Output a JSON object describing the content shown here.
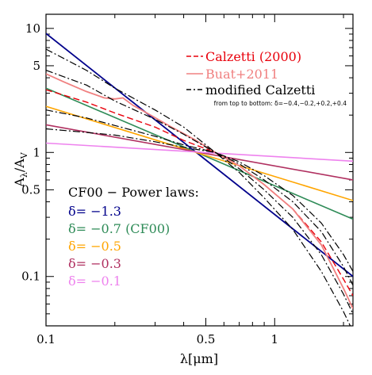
{
  "chart_data": {
    "type": "line",
    "x_scale": "log",
    "y_scale": "log",
    "xlim": [
      0.1,
      2.2
    ],
    "ylim": [
      0.04,
      13
    ],
    "xlabel": "λ[μm]",
    "ylabel": "Aλ/AV",
    "ylabel_main": "A",
    "ylabel_sub1": "λ",
    "ylabel_slash": "/A",
    "ylabel_sub2": "V",
    "x_ticks": [
      {
        "value": 0.1,
        "label": "0.1"
      },
      {
        "value": 0.5,
        "label": "0.5"
      },
      {
        "value": 1,
        "label": "1"
      }
    ],
    "y_ticks": [
      {
        "value": 0.1,
        "label": "0.1"
      },
      {
        "value": 0.5,
        "label": "0.5"
      },
      {
        "value": 1,
        "label": "1"
      },
      {
        "value": 5,
        "label": "5"
      },
      {
        "value": 10,
        "label": "10"
      }
    ],
    "legend_top": [
      {
        "label": "Calzetti (2000)",
        "color": "#e8000b",
        "style": "dashed"
      },
      {
        "label": "Buat+2011",
        "color": "#f08080",
        "style": "solid"
      },
      {
        "label": "modified Calzetti",
        "color": "#000000",
        "style": "dashdot"
      }
    ],
    "legend_note": "from top to bottom: δ=−0.4,−0.2,+0.2,+0.4",
    "legend_bottom_title": "CF00 − Power laws:",
    "power_law_labels": [
      {
        "label": "δ= −1.3",
        "color": "#00008b"
      },
      {
        "label": "δ= −0.7 (CF00)",
        "color": "#2e8b57"
      },
      {
        "label": "δ= −0.5",
        "color": "#ffa500"
      },
      {
        "label": "δ= −0.3",
        "color": "#b03060"
      },
      {
        "label": "δ= −0.1",
        "color": "#ee82ee"
      }
    ],
    "series": [
      {
        "name": "δ= −1.3",
        "color": "#00008b",
        "style": "solid",
        "width": 1.8,
        "x": [
          0.1,
          2.2
        ],
        "y": [
          9.1,
          0.1
        ]
      },
      {
        "name": "δ= −0.7 (CF00)",
        "color": "#2e8b57",
        "style": "solid",
        "width": 1.6,
        "x": [
          0.1,
          2.2
        ],
        "y": [
          3.3,
          0.29
        ]
      },
      {
        "name": "δ= −0.5",
        "color": "#ffa500",
        "style": "solid",
        "width": 1.6,
        "x": [
          0.1,
          2.2
        ],
        "y": [
          2.35,
          0.41
        ]
      },
      {
        "name": "δ= −0.3",
        "color": "#b03060",
        "style": "solid",
        "width": 1.6,
        "x": [
          0.1,
          2.2
        ],
        "y": [
          1.67,
          0.6
        ]
      },
      {
        "name": "δ= −0.1",
        "color": "#ee82ee",
        "style": "solid",
        "width": 1.6,
        "x": [
          0.1,
          2.2
        ],
        "y": [
          1.19,
          0.85
        ]
      },
      {
        "name": "Calzetti (2000)",
        "color": "#e8000b",
        "style": "dashed",
        "width": 1.4,
        "x": [
          0.1,
          0.15,
          0.2,
          0.3,
          0.4,
          0.55,
          0.7,
          0.9,
          1.2,
          1.6,
          2.0,
          2.2
        ],
        "y": [
          3.2,
          2.55,
          2.08,
          1.6,
          1.25,
          1.0,
          0.78,
          0.55,
          0.35,
          0.19,
          0.095,
          0.07
        ]
      },
      {
        "name": "Buat+2011",
        "color": "#f08080",
        "style": "solid",
        "width": 1.8,
        "x": [
          0.1,
          0.12,
          0.15,
          0.18,
          0.2,
          0.217,
          0.24,
          0.28,
          0.35,
          0.45,
          0.55,
          0.7,
          0.9,
          1.2,
          1.6,
          2.0,
          2.2
        ],
        "y": [
          4.3,
          3.7,
          3.1,
          2.75,
          2.7,
          2.75,
          2.4,
          2.05,
          1.62,
          1.26,
          1.0,
          0.78,
          0.55,
          0.35,
          0.18,
          0.08,
          0.055
        ]
      },
      {
        "name": "modified Calzetti δ=−0.4",
        "color": "#000000",
        "style": "dashdot",
        "width": 1.2,
        "x": [
          0.1,
          0.15,
          0.2,
          0.3,
          0.4,
          0.55,
          0.7,
          0.9,
          1.2,
          1.6,
          2.0,
          2.2
        ],
        "y": [
          6.8,
          4.6,
          3.3,
          2.2,
          1.6,
          1.0,
          0.69,
          0.43,
          0.24,
          0.11,
          0.052,
          0.036
        ]
      },
      {
        "name": "modified Calzetti δ=−0.2",
        "color": "#000000",
        "style": "dashdot",
        "width": 1.2,
        "x": [
          0.1,
          0.15,
          0.2,
          0.3,
          0.4,
          0.55,
          0.7,
          0.9,
          1.2,
          1.6,
          2.0,
          2.2
        ],
        "y": [
          4.6,
          3.5,
          2.6,
          1.85,
          1.4,
          1.0,
          0.74,
          0.5,
          0.3,
          0.15,
          0.072,
          0.05
        ]
      },
      {
        "name": "modified Calzetti δ=+0.2",
        "color": "#000000",
        "style": "dashdot",
        "width": 1.2,
        "x": [
          0.1,
          0.15,
          0.2,
          0.3,
          0.4,
          0.55,
          0.7,
          0.9,
          1.2,
          1.6,
          2.0,
          2.2
        ],
        "y": [
          2.2,
          1.9,
          1.65,
          1.35,
          1.15,
          1.0,
          0.81,
          0.6,
          0.4,
          0.23,
          0.12,
          0.085
        ]
      },
      {
        "name": "modified Calzetti δ=+0.4",
        "color": "#000000",
        "style": "dashdot",
        "width": 1.2,
        "x": [
          0.1,
          0.15,
          0.2,
          0.3,
          0.4,
          0.55,
          0.7,
          0.9,
          1.2,
          1.6,
          2.0,
          2.2
        ],
        "y": [
          1.55,
          1.45,
          1.38,
          1.22,
          1.1,
          1.0,
          0.84,
          0.65,
          0.45,
          0.27,
          0.15,
          0.11
        ]
      }
    ]
  }
}
